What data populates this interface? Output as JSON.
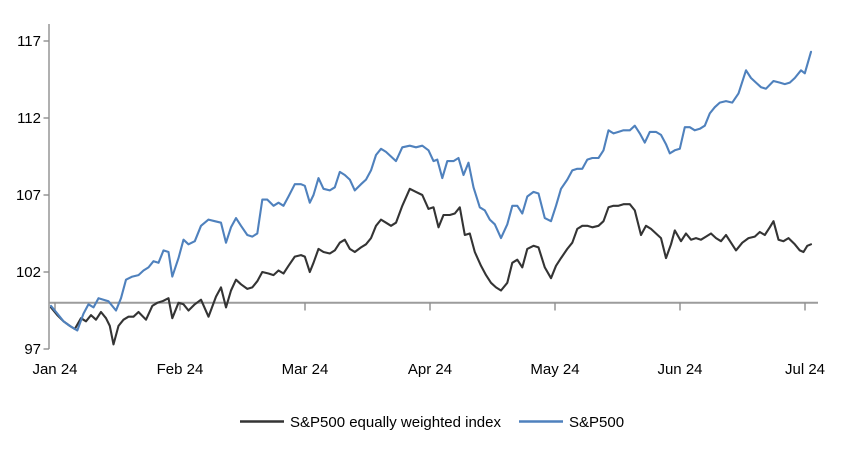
{
  "chart_data": {
    "type": "line",
    "title": "",
    "x_tick_labels": [
      "Jan 24",
      "Feb 24",
      "Mar 24",
      "Apr 24",
      "May 24",
      "Jun 24",
      "Jul 24"
    ],
    "y_tick_labels": [
      "97",
      "102",
      "107",
      "112",
      "117"
    ],
    "y_ticks": [
      97,
      102,
      107,
      112,
      117
    ],
    "ylim": [
      97,
      118.2
    ],
    "xlim_months": [
      0,
      6.15
    ],
    "baseline_value": 100,
    "grid": "off",
    "legend_position": "bottom-center",
    "axis_color": "#9c9c9c",
    "series": [
      {
        "name": "S&P500 equally weighted index",
        "color": "#343434",
        "points": [
          [
            0.0,
            99.7
          ],
          [
            0.05,
            99.2
          ],
          [
            0.1,
            98.8
          ],
          [
            0.15,
            98.5
          ],
          [
            0.19,
            98.3
          ],
          [
            0.24,
            99.0
          ],
          [
            0.28,
            98.8
          ],
          [
            0.32,
            99.2
          ],
          [
            0.36,
            98.9
          ],
          [
            0.4,
            99.4
          ],
          [
            0.44,
            99.0
          ],
          [
            0.47,
            98.5
          ],
          [
            0.5,
            97.3
          ],
          [
            0.54,
            98.5
          ],
          [
            0.58,
            98.9
          ],
          [
            0.62,
            99.1
          ],
          [
            0.66,
            99.1
          ],
          [
            0.7,
            99.4
          ],
          [
            0.76,
            98.9
          ],
          [
            0.81,
            99.8
          ],
          [
            0.85,
            100.0
          ],
          [
            0.89,
            100.1
          ],
          [
            0.94,
            100.3
          ],
          [
            0.97,
            99.0
          ],
          [
            1.02,
            100.0
          ],
          [
            1.06,
            99.9
          ],
          [
            1.1,
            99.5
          ],
          [
            1.15,
            99.9
          ],
          [
            1.2,
            100.2
          ],
          [
            1.26,
            99.1
          ],
          [
            1.32,
            100.4
          ],
          [
            1.36,
            101.0
          ],
          [
            1.4,
            99.7
          ],
          [
            1.44,
            100.8
          ],
          [
            1.48,
            101.5
          ],
          [
            1.52,
            101.2
          ],
          [
            1.57,
            100.9
          ],
          [
            1.61,
            101.0
          ],
          [
            1.65,
            101.4
          ],
          [
            1.69,
            102.0
          ],
          [
            1.74,
            101.9
          ],
          [
            1.78,
            101.8
          ],
          [
            1.82,
            102.1
          ],
          [
            1.86,
            101.9
          ],
          [
            1.9,
            102.4
          ],
          [
            1.95,
            103.0
          ],
          [
            2.0,
            103.1
          ],
          [
            2.03,
            103.0
          ],
          [
            2.07,
            102.0
          ],
          [
            2.1,
            102.6
          ],
          [
            2.14,
            103.5
          ],
          [
            2.18,
            103.3
          ],
          [
            2.23,
            103.2
          ],
          [
            2.27,
            103.4
          ],
          [
            2.31,
            103.9
          ],
          [
            2.35,
            104.1
          ],
          [
            2.39,
            103.5
          ],
          [
            2.43,
            103.3
          ],
          [
            2.48,
            103.6
          ],
          [
            2.52,
            103.8
          ],
          [
            2.56,
            104.2
          ],
          [
            2.6,
            105.0
          ],
          [
            2.64,
            105.4
          ],
          [
            2.68,
            105.2
          ],
          [
            2.72,
            105.0
          ],
          [
            2.76,
            105.2
          ],
          [
            2.81,
            106.3
          ],
          [
            2.87,
            107.4
          ],
          [
            2.92,
            107.2
          ],
          [
            2.97,
            107.0
          ],
          [
            3.02,
            106.1
          ],
          [
            3.06,
            106.2
          ],
          [
            3.1,
            104.9
          ],
          [
            3.14,
            105.7
          ],
          [
            3.19,
            105.7
          ],
          [
            3.23,
            105.8
          ],
          [
            3.27,
            106.2
          ],
          [
            3.31,
            104.4
          ],
          [
            3.35,
            104.5
          ],
          [
            3.39,
            103.3
          ],
          [
            3.44,
            102.4
          ],
          [
            3.48,
            101.8
          ],
          [
            3.52,
            101.3
          ],
          [
            3.56,
            101.0
          ],
          [
            3.6,
            100.8
          ],
          [
            3.65,
            101.3
          ],
          [
            3.69,
            102.6
          ],
          [
            3.73,
            102.8
          ],
          [
            3.77,
            102.3
          ],
          [
            3.81,
            103.5
          ],
          [
            3.86,
            103.7
          ],
          [
            3.9,
            103.6
          ],
          [
            3.95,
            102.3
          ],
          [
            4.0,
            101.6
          ],
          [
            4.04,
            102.4
          ],
          [
            4.08,
            102.9
          ],
          [
            4.13,
            103.5
          ],
          [
            4.17,
            103.9
          ],
          [
            4.21,
            104.8
          ],
          [
            4.25,
            105.0
          ],
          [
            4.29,
            105.0
          ],
          [
            4.33,
            104.9
          ],
          [
            4.38,
            105.0
          ],
          [
            4.42,
            105.3
          ],
          [
            4.46,
            106.2
          ],
          [
            4.5,
            106.3
          ],
          [
            4.54,
            106.3
          ],
          [
            4.58,
            106.4
          ],
          [
            4.63,
            106.4
          ],
          [
            4.67,
            106.0
          ],
          [
            4.72,
            104.4
          ],
          [
            4.76,
            105.0
          ],
          [
            4.8,
            104.8
          ],
          [
            4.84,
            104.5
          ],
          [
            4.88,
            104.2
          ],
          [
            4.92,
            102.9
          ],
          [
            4.96,
            103.8
          ],
          [
            4.99,
            104.7
          ],
          [
            5.04,
            104.0
          ],
          [
            5.08,
            104.5
          ],
          [
            5.12,
            104.1
          ],
          [
            5.16,
            104.2
          ],
          [
            5.2,
            104.1
          ],
          [
            5.24,
            104.3
          ],
          [
            5.28,
            104.5
          ],
          [
            5.32,
            104.2
          ],
          [
            5.36,
            104.0
          ],
          [
            5.4,
            104.4
          ],
          [
            5.44,
            103.9
          ],
          [
            5.48,
            103.4
          ],
          [
            5.53,
            103.9
          ],
          [
            5.58,
            104.2
          ],
          [
            5.63,
            104.3
          ],
          [
            5.67,
            104.6
          ],
          [
            5.71,
            104.4
          ],
          [
            5.75,
            104.9
          ],
          [
            5.78,
            105.3
          ],
          [
            5.82,
            104.1
          ],
          [
            5.86,
            104.0
          ],
          [
            5.9,
            104.2
          ],
          [
            5.95,
            103.8
          ],
          [
            5.99,
            103.4
          ],
          [
            6.02,
            103.3
          ],
          [
            6.05,
            103.7
          ],
          [
            6.08,
            103.8
          ]
        ]
      },
      {
        "name": "S&P500",
        "color": "#4f81bd",
        "points": [
          [
            0.0,
            99.8
          ],
          [
            0.05,
            99.3
          ],
          [
            0.1,
            98.8
          ],
          [
            0.15,
            98.5
          ],
          [
            0.21,
            98.2
          ],
          [
            0.26,
            99.3
          ],
          [
            0.3,
            99.9
          ],
          [
            0.34,
            99.7
          ],
          [
            0.38,
            100.3
          ],
          [
            0.42,
            100.2
          ],
          [
            0.46,
            100.1
          ],
          [
            0.52,
            99.5
          ],
          [
            0.56,
            100.3
          ],
          [
            0.6,
            101.5
          ],
          [
            0.65,
            101.7
          ],
          [
            0.7,
            101.8
          ],
          [
            0.74,
            102.1
          ],
          [
            0.78,
            102.3
          ],
          [
            0.82,
            102.7
          ],
          [
            0.86,
            102.6
          ],
          [
            0.9,
            103.4
          ],
          [
            0.94,
            103.3
          ],
          [
            0.97,
            101.7
          ],
          [
            1.02,
            102.9
          ],
          [
            1.06,
            104.1
          ],
          [
            1.1,
            103.8
          ],
          [
            1.15,
            104.0
          ],
          [
            1.2,
            105.0
          ],
          [
            1.26,
            105.4
          ],
          [
            1.31,
            105.3
          ],
          [
            1.36,
            105.2
          ],
          [
            1.4,
            103.9
          ],
          [
            1.44,
            104.9
          ],
          [
            1.48,
            105.5
          ],
          [
            1.52,
            105.0
          ],
          [
            1.57,
            104.4
          ],
          [
            1.61,
            104.3
          ],
          [
            1.65,
            104.5
          ],
          [
            1.69,
            106.7
          ],
          [
            1.73,
            106.7
          ],
          [
            1.78,
            106.3
          ],
          [
            1.82,
            106.5
          ],
          [
            1.86,
            106.3
          ],
          [
            1.9,
            106.9
          ],
          [
            1.95,
            107.7
          ],
          [
            2.0,
            107.7
          ],
          [
            2.03,
            107.6
          ],
          [
            2.07,
            106.5
          ],
          [
            2.1,
            107.0
          ],
          [
            2.14,
            108.1
          ],
          [
            2.18,
            107.4
          ],
          [
            2.23,
            107.3
          ],
          [
            2.27,
            107.5
          ],
          [
            2.31,
            108.5
          ],
          [
            2.35,
            108.3
          ],
          [
            2.39,
            108.0
          ],
          [
            2.43,
            107.3
          ],
          [
            2.48,
            107.7
          ],
          [
            2.52,
            108.0
          ],
          [
            2.56,
            108.6
          ],
          [
            2.6,
            109.6
          ],
          [
            2.64,
            110.0
          ],
          [
            2.68,
            109.8
          ],
          [
            2.72,
            109.5
          ],
          [
            2.76,
            109.2
          ],
          [
            2.81,
            110.1
          ],
          [
            2.87,
            110.2
          ],
          [
            2.92,
            110.1
          ],
          [
            2.97,
            110.2
          ],
          [
            3.02,
            109.9
          ],
          [
            3.06,
            109.2
          ],
          [
            3.09,
            109.3
          ],
          [
            3.13,
            108.1
          ],
          [
            3.17,
            109.2
          ],
          [
            3.22,
            109.2
          ],
          [
            3.26,
            109.4
          ],
          [
            3.3,
            108.3
          ],
          [
            3.34,
            109.1
          ],
          [
            3.38,
            107.5
          ],
          [
            3.43,
            106.2
          ],
          [
            3.47,
            106.0
          ],
          [
            3.51,
            105.4
          ],
          [
            3.55,
            105.1
          ],
          [
            3.6,
            104.2
          ],
          [
            3.65,
            105.1
          ],
          [
            3.69,
            106.3
          ],
          [
            3.73,
            106.3
          ],
          [
            3.77,
            105.8
          ],
          [
            3.81,
            106.9
          ],
          [
            3.86,
            107.2
          ],
          [
            3.9,
            107.1
          ],
          [
            3.95,
            105.5
          ],
          [
            4.0,
            105.3
          ],
          [
            4.04,
            106.3
          ],
          [
            4.08,
            107.4
          ],
          [
            4.13,
            108.0
          ],
          [
            4.17,
            108.6
          ],
          [
            4.21,
            108.7
          ],
          [
            4.25,
            108.7
          ],
          [
            4.29,
            109.3
          ],
          [
            4.33,
            109.4
          ],
          [
            4.38,
            109.4
          ],
          [
            4.42,
            109.9
          ],
          [
            4.46,
            111.2
          ],
          [
            4.5,
            111.0
          ],
          [
            4.54,
            111.1
          ],
          [
            4.58,
            111.2
          ],
          [
            4.63,
            111.2
          ],
          [
            4.67,
            111.5
          ],
          [
            4.71,
            111.0
          ],
          [
            4.75,
            110.4
          ],
          [
            4.79,
            111.1
          ],
          [
            4.84,
            111.1
          ],
          [
            4.88,
            110.9
          ],
          [
            4.92,
            110.3
          ],
          [
            4.95,
            109.7
          ],
          [
            4.99,
            109.9
          ],
          [
            5.03,
            110.0
          ],
          [
            5.07,
            111.4
          ],
          [
            5.11,
            111.4
          ],
          [
            5.15,
            111.2
          ],
          [
            5.19,
            111.3
          ],
          [
            5.23,
            111.5
          ],
          [
            5.27,
            112.3
          ],
          [
            5.31,
            112.7
          ],
          [
            5.35,
            113.0
          ],
          [
            5.4,
            113.1
          ],
          [
            5.45,
            113.0
          ],
          [
            5.5,
            113.6
          ],
          [
            5.56,
            115.1
          ],
          [
            5.6,
            114.6
          ],
          [
            5.64,
            114.3
          ],
          [
            5.68,
            114.0
          ],
          [
            5.72,
            113.9
          ],
          [
            5.78,
            114.4
          ],
          [
            5.83,
            114.3
          ],
          [
            5.87,
            114.2
          ],
          [
            5.91,
            114.3
          ],
          [
            5.95,
            114.6
          ],
          [
            6.0,
            115.1
          ],
          [
            6.03,
            114.9
          ],
          [
            6.08,
            116.3
          ]
        ]
      }
    ],
    "legend": {
      "item1": "S&P500 equally weighted index",
      "item2": "S&P500"
    }
  }
}
